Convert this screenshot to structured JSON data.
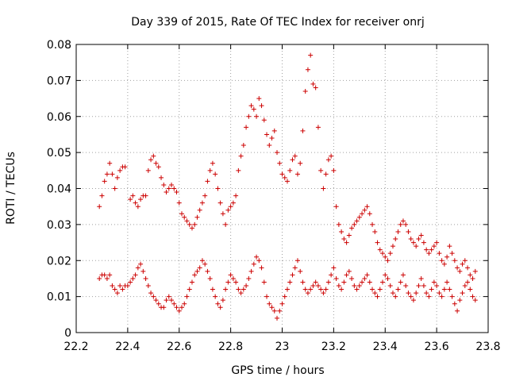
{
  "chart_data": {
    "type": "scatter",
    "title": "Day 339 of 2015, Rate Of TEC Index for receiver onrj",
    "xlabel": "GPS time / hours",
    "ylabel": "ROTI / TECUs",
    "xlim": [
      22.2,
      23.8
    ],
    "ylim": [
      0,
      0.08
    ],
    "x_ticks": [
      22.2,
      22.4,
      22.6,
      22.8,
      23,
      23.2,
      23.4,
      23.6,
      23.8
    ],
    "x_tick_labels": [
      "22.2",
      "22.4",
      "22.6",
      "22.8",
      "23",
      "23.2",
      "23.4",
      "23.6",
      "23.8"
    ],
    "y_ticks": [
      0,
      0.01,
      0.02,
      0.03,
      0.04,
      0.05,
      0.06,
      0.07,
      0.08
    ],
    "y_tick_labels": [
      "0",
      "0.01",
      "0.02",
      "0.03",
      "0.04",
      "0.05",
      "0.06",
      "0.07",
      "0.08"
    ],
    "grid": true,
    "marker": "plus",
    "marker_color": "#cc0000",
    "series": [
      {
        "points": [
          [
            22.29,
            0.035
          ],
          [
            22.3,
            0.038
          ],
          [
            22.31,
            0.042
          ],
          [
            22.32,
            0.044
          ],
          [
            22.33,
            0.047
          ],
          [
            22.34,
            0.044
          ],
          [
            22.35,
            0.04
          ],
          [
            22.36,
            0.043
          ],
          [
            22.37,
            0.045
          ],
          [
            22.38,
            0.046
          ],
          [
            22.39,
            0.046
          ],
          [
            22.41,
            0.037
          ],
          [
            22.42,
            0.038
          ],
          [
            22.43,
            0.036
          ],
          [
            22.44,
            0.035
          ],
          [
            22.45,
            0.037
          ],
          [
            22.46,
            0.038
          ],
          [
            22.47,
            0.038
          ],
          [
            22.48,
            0.045
          ],
          [
            22.49,
            0.048
          ],
          [
            22.5,
            0.049
          ],
          [
            22.51,
            0.047
          ],
          [
            22.52,
            0.046
          ],
          [
            22.53,
            0.043
          ],
          [
            22.54,
            0.041
          ],
          [
            22.55,
            0.039
          ],
          [
            22.56,
            0.04
          ],
          [
            22.57,
            0.041
          ],
          [
            22.58,
            0.04
          ],
          [
            22.59,
            0.039
          ],
          [
            22.6,
            0.036
          ],
          [
            22.61,
            0.033
          ],
          [
            22.62,
            0.032
          ],
          [
            22.63,
            0.031
          ],
          [
            22.64,
            0.03
          ],
          [
            22.65,
            0.029
          ],
          [
            22.66,
            0.03
          ],
          [
            22.67,
            0.032
          ],
          [
            22.68,
            0.034
          ],
          [
            22.69,
            0.036
          ],
          [
            22.7,
            0.038
          ],
          [
            22.71,
            0.042
          ],
          [
            22.72,
            0.045
          ],
          [
            22.73,
            0.047
          ],
          [
            22.74,
            0.044
          ],
          [
            22.75,
            0.04
          ],
          [
            22.76,
            0.036
          ],
          [
            22.77,
            0.033
          ],
          [
            22.78,
            0.03
          ],
          [
            22.79,
            0.034
          ],
          [
            22.8,
            0.035
          ],
          [
            22.81,
            0.036
          ],
          [
            22.82,
            0.038
          ],
          [
            22.83,
            0.045
          ],
          [
            22.84,
            0.049
          ],
          [
            22.85,
            0.052
          ],
          [
            22.86,
            0.057
          ],
          [
            22.87,
            0.06
          ],
          [
            22.88,
            0.063
          ],
          [
            22.89,
            0.062
          ],
          [
            22.9,
            0.06
          ],
          [
            22.91,
            0.065
          ],
          [
            22.92,
            0.063
          ],
          [
            22.93,
            0.059
          ],
          [
            22.94,
            0.055
          ],
          [
            22.95,
            0.052
          ],
          [
            22.96,
            0.054
          ],
          [
            22.97,
            0.056
          ],
          [
            22.98,
            0.05
          ],
          [
            22.99,
            0.047
          ],
          [
            23.0,
            0.044
          ],
          [
            23.01,
            0.043
          ],
          [
            23.02,
            0.042
          ],
          [
            23.03,
            0.045
          ],
          [
            23.04,
            0.048
          ],
          [
            23.05,
            0.049
          ],
          [
            23.06,
            0.044
          ],
          [
            23.07,
            0.047
          ],
          [
            23.08,
            0.056
          ],
          [
            23.09,
            0.067
          ],
          [
            23.1,
            0.073
          ],
          [
            23.11,
            0.077
          ],
          [
            23.12,
            0.069
          ],
          [
            23.13,
            0.068
          ],
          [
            23.14,
            0.057
          ],
          [
            23.15,
            0.045
          ],
          [
            23.16,
            0.04
          ],
          [
            23.17,
            0.044
          ],
          [
            23.18,
            0.048
          ],
          [
            23.19,
            0.049
          ],
          [
            23.2,
            0.045
          ],
          [
            23.21,
            0.035
          ],
          [
            23.22,
            0.03
          ],
          [
            23.23,
            0.028
          ],
          [
            23.24,
            0.026
          ],
          [
            23.25,
            0.025
          ],
          [
            23.26,
            0.027
          ],
          [
            23.27,
            0.029
          ],
          [
            23.28,
            0.03
          ],
          [
            23.29,
            0.031
          ],
          [
            23.3,
            0.032
          ],
          [
            23.31,
            0.033
          ],
          [
            23.32,
            0.034
          ],
          [
            23.33,
            0.035
          ],
          [
            23.34,
            0.033
          ],
          [
            23.35,
            0.03
          ],
          [
            23.36,
            0.028
          ],
          [
            23.37,
            0.025
          ],
          [
            23.38,
            0.023
          ],
          [
            23.39,
            0.022
          ],
          [
            23.4,
            0.021
          ],
          [
            23.41,
            0.02
          ],
          [
            23.42,
            0.022
          ],
          [
            23.43,
            0.024
          ],
          [
            23.44,
            0.026
          ],
          [
            23.45,
            0.028
          ],
          [
            23.46,
            0.03
          ],
          [
            23.47,
            0.031
          ],
          [
            23.48,
            0.03
          ],
          [
            23.49,
            0.028
          ],
          [
            23.5,
            0.026
          ],
          [
            23.51,
            0.025
          ],
          [
            23.52,
            0.024
          ],
          [
            23.53,
            0.026
          ],
          [
            23.54,
            0.027
          ],
          [
            23.55,
            0.025
          ],
          [
            23.56,
            0.023
          ],
          [
            23.57,
            0.022
          ],
          [
            23.58,
            0.023
          ],
          [
            23.59,
            0.024
          ],
          [
            23.6,
            0.025
          ],
          [
            23.61,
            0.022
          ],
          [
            23.62,
            0.02
          ],
          [
            23.63,
            0.019
          ],
          [
            23.64,
            0.021
          ],
          [
            23.65,
            0.024
          ],
          [
            23.66,
            0.022
          ],
          [
            23.67,
            0.02
          ],
          [
            23.68,
            0.018
          ],
          [
            23.69,
            0.017
          ],
          [
            23.7,
            0.019
          ],
          [
            23.71,
            0.02
          ],
          [
            23.72,
            0.018
          ],
          [
            23.73,
            0.016
          ],
          [
            23.74,
            0.015
          ],
          [
            23.75,
            0.017
          ],
          [
            22.29,
            0.015
          ],
          [
            22.3,
            0.016
          ],
          [
            22.31,
            0.016
          ],
          [
            22.32,
            0.015
          ],
          [
            22.33,
            0.016
          ],
          [
            22.34,
            0.013
          ],
          [
            22.35,
            0.012
          ],
          [
            22.36,
            0.011
          ],
          [
            22.37,
            0.013
          ],
          [
            22.38,
            0.012
          ],
          [
            22.39,
            0.013
          ],
          [
            22.4,
            0.013
          ],
          [
            22.41,
            0.014
          ],
          [
            22.42,
            0.015
          ],
          [
            22.43,
            0.016
          ],
          [
            22.44,
            0.018
          ],
          [
            22.45,
            0.019
          ],
          [
            22.46,
            0.017
          ],
          [
            22.47,
            0.015
          ],
          [
            22.48,
            0.013
          ],
          [
            22.49,
            0.011
          ],
          [
            22.5,
            0.01
          ],
          [
            22.51,
            0.009
          ],
          [
            22.52,
            0.008
          ],
          [
            22.53,
            0.007
          ],
          [
            22.54,
            0.007
          ],
          [
            22.55,
            0.009
          ],
          [
            22.56,
            0.01
          ],
          [
            22.57,
            0.009
          ],
          [
            22.58,
            0.008
          ],
          [
            22.59,
            0.007
          ],
          [
            22.6,
            0.006
          ],
          [
            22.61,
            0.007
          ],
          [
            22.62,
            0.008
          ],
          [
            22.63,
            0.01
          ],
          [
            22.64,
            0.012
          ],
          [
            22.65,
            0.014
          ],
          [
            22.66,
            0.016
          ],
          [
            22.67,
            0.017
          ],
          [
            22.68,
            0.018
          ],
          [
            22.69,
            0.02
          ],
          [
            22.7,
            0.019
          ],
          [
            22.71,
            0.017
          ],
          [
            22.72,
            0.015
          ],
          [
            22.73,
            0.012
          ],
          [
            22.74,
            0.01
          ],
          [
            22.75,
            0.008
          ],
          [
            22.76,
            0.007
          ],
          [
            22.77,
            0.009
          ],
          [
            22.78,
            0.012
          ],
          [
            22.79,
            0.014
          ],
          [
            22.8,
            0.016
          ],
          [
            22.81,
            0.015
          ],
          [
            22.82,
            0.014
          ],
          [
            22.83,
            0.012
          ],
          [
            22.84,
            0.011
          ],
          [
            22.85,
            0.012
          ],
          [
            22.86,
            0.013
          ],
          [
            22.87,
            0.015
          ],
          [
            22.88,
            0.017
          ],
          [
            22.89,
            0.019
          ],
          [
            22.9,
            0.021
          ],
          [
            22.91,
            0.02
          ],
          [
            22.92,
            0.018
          ],
          [
            22.93,
            0.014
          ],
          [
            22.94,
            0.01
          ],
          [
            22.95,
            0.008
          ],
          [
            22.96,
            0.007
          ],
          [
            22.97,
            0.006
          ],
          [
            22.98,
            0.004
          ],
          [
            22.99,
            0.006
          ],
          [
            23.0,
            0.008
          ],
          [
            23.01,
            0.01
          ],
          [
            23.02,
            0.012
          ],
          [
            23.03,
            0.014
          ],
          [
            23.04,
            0.016
          ],
          [
            23.05,
            0.018
          ],
          [
            23.06,
            0.02
          ],
          [
            23.07,
            0.017
          ],
          [
            23.08,
            0.014
          ],
          [
            23.09,
            0.012
          ],
          [
            23.1,
            0.011
          ],
          [
            23.11,
            0.012
          ],
          [
            23.12,
            0.013
          ],
          [
            23.13,
            0.014
          ],
          [
            23.14,
            0.013
          ],
          [
            23.15,
            0.012
          ],
          [
            23.16,
            0.011
          ],
          [
            23.17,
            0.012
          ],
          [
            23.18,
            0.014
          ],
          [
            23.19,
            0.016
          ],
          [
            23.2,
            0.018
          ],
          [
            23.21,
            0.015
          ],
          [
            23.22,
            0.013
          ],
          [
            23.23,
            0.012
          ],
          [
            23.24,
            0.014
          ],
          [
            23.25,
            0.016
          ],
          [
            23.26,
            0.017
          ],
          [
            23.27,
            0.015
          ],
          [
            23.28,
            0.013
          ],
          [
            23.29,
            0.012
          ],
          [
            23.3,
            0.013
          ],
          [
            23.31,
            0.014
          ],
          [
            23.32,
            0.015
          ],
          [
            23.33,
            0.016
          ],
          [
            23.34,
            0.014
          ],
          [
            23.35,
            0.012
          ],
          [
            23.36,
            0.011
          ],
          [
            23.37,
            0.01
          ],
          [
            23.38,
            0.012
          ],
          [
            23.39,
            0.014
          ],
          [
            23.4,
            0.016
          ],
          [
            23.41,
            0.015
          ],
          [
            23.42,
            0.013
          ],
          [
            23.43,
            0.011
          ],
          [
            23.44,
            0.01
          ],
          [
            23.45,
            0.012
          ],
          [
            23.46,
            0.014
          ],
          [
            23.47,
            0.016
          ],
          [
            23.48,
            0.013
          ],
          [
            23.49,
            0.011
          ],
          [
            23.5,
            0.01
          ],
          [
            23.51,
            0.009
          ],
          [
            23.52,
            0.011
          ],
          [
            23.53,
            0.013
          ],
          [
            23.54,
            0.015
          ],
          [
            23.55,
            0.013
          ],
          [
            23.56,
            0.011
          ],
          [
            23.57,
            0.01
          ],
          [
            23.58,
            0.012
          ],
          [
            23.59,
            0.014
          ],
          [
            23.6,
            0.013
          ],
          [
            23.61,
            0.011
          ],
          [
            23.62,
            0.01
          ],
          [
            23.63,
            0.012
          ],
          [
            23.64,
            0.014
          ],
          [
            23.65,
            0.012
          ],
          [
            23.66,
            0.01
          ],
          [
            23.67,
            0.008
          ],
          [
            23.68,
            0.006
          ],
          [
            23.69,
            0.009
          ],
          [
            23.7,
            0.011
          ],
          [
            23.71,
            0.013
          ],
          [
            23.72,
            0.014
          ],
          [
            23.73,
            0.012
          ],
          [
            23.74,
            0.01
          ],
          [
            23.75,
            0.009
          ]
        ]
      }
    ]
  }
}
